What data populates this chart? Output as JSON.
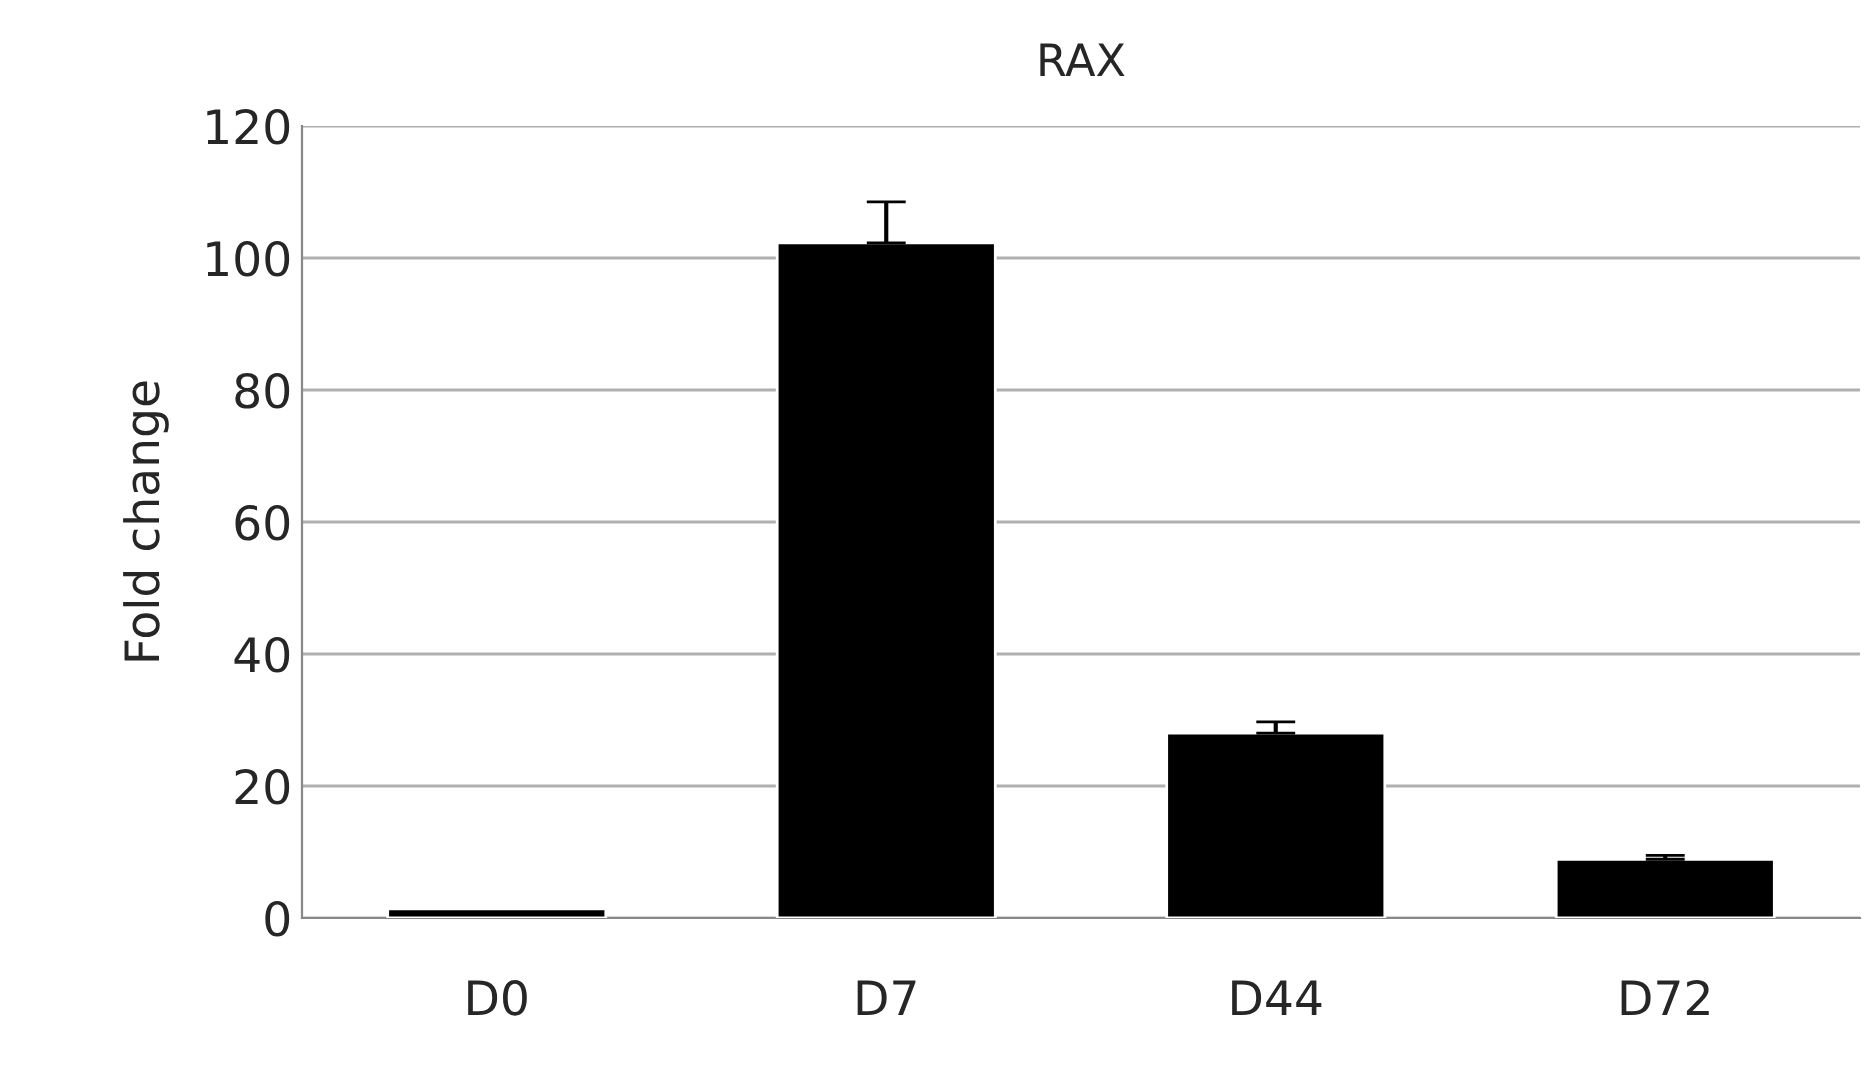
{
  "chart_data": {
    "type": "bar",
    "title": "RAX",
    "ylabel": "Fold change",
    "categories": [
      "D0",
      "D7",
      "D44",
      "D72"
    ],
    "values": [
      1.4,
      102.3,
      28.0,
      8.9
    ],
    "errors": [
      null,
      6.2,
      1.7,
      0.6
    ],
    "color": "#000000",
    "ylim": [
      0,
      120
    ],
    "yticks": [
      0,
      20,
      40,
      60,
      80,
      100,
      120
    ],
    "grid": "y"
  }
}
